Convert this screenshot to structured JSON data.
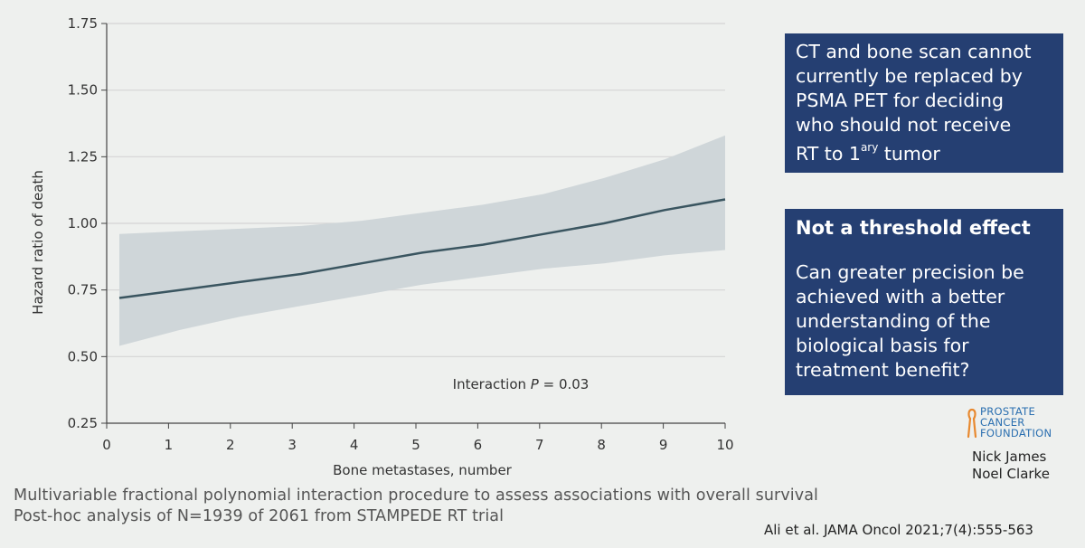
{
  "chart_data": {
    "type": "line",
    "title": "",
    "xlabel": "Bone metastases, number",
    "ylabel": "Hazard ratio of death",
    "xlim": [
      0,
      10
    ],
    "ylim": [
      0.25,
      1.75
    ],
    "x_ticks": [
      "0",
      "1",
      "2",
      "3",
      "4",
      "5",
      "6",
      "7",
      "8",
      "9",
      "10"
    ],
    "y_ticks": [
      "0.25",
      "0.50",
      "0.75",
      "1.00",
      "1.25",
      "1.50",
      "1.75"
    ],
    "grid": "horizontal",
    "series": [
      {
        "x": [
          0,
          1,
          2,
          3,
          4,
          5,
          6,
          7,
          8,
          9,
          10
        ],
        "y": [
          0.72,
          0.75,
          0.78,
          0.81,
          0.85,
          0.89,
          0.92,
          0.96,
          1.0,
          1.05,
          1.09
        ],
        "lower": [
          0.54,
          0.6,
          0.65,
          0.69,
          0.73,
          0.77,
          0.8,
          0.83,
          0.85,
          0.88,
          0.9
        ],
        "upper": [
          0.96,
          0.97,
          0.98,
          0.99,
          1.01,
          1.04,
          1.07,
          1.11,
          1.17,
          1.24,
          1.33
        ],
        "color": "#3a5560",
        "band_color": "#cfd6d9"
      }
    ],
    "annotation": "Interaction P = 0.03"
  },
  "annotation_parts": {
    "prefix": "Interaction ",
    "italic": "P",
    "suffix": " = 0.03"
  },
  "box_top": {
    "lines": [
      "CT and bone scan cannot",
      "currently be replaced by",
      "PSMA PET for deciding",
      "who should not receive"
    ],
    "last_line_prefix": "RT to 1",
    "last_line_sup": "ary",
    "last_line_suffix": " tumor"
  },
  "box_bottom": {
    "heading": "Not a threshold effect",
    "lines": [
      "Can greater precision be",
      "achieved with a better",
      "understanding of the",
      "biological basis for",
      "treatment benefit?"
    ]
  },
  "logo": {
    "line1": "PROSTATE",
    "line2": "CANCER",
    "line3": "FOUNDATION",
    "color": "#2b6fb0",
    "ribbon_color": "#e8892f"
  },
  "authors": [
    "Nick James",
    "Noel Clarke"
  ],
  "footer": {
    "line1": "Multivariable fractional polynomial interaction procedure to assess associations with overall survival",
    "line2": "Post-hoc analysis of N=1939 of 2061 from STAMPEDE RT trial"
  },
  "citation": "Ali et al. JAMA Oncol 2021;7(4):555-563",
  "colors": {
    "background": "#eef0ee",
    "box": "#253f72",
    "box_text": "#ffffff",
    "grid": "#d4d4d4",
    "axis": "#444444"
  }
}
